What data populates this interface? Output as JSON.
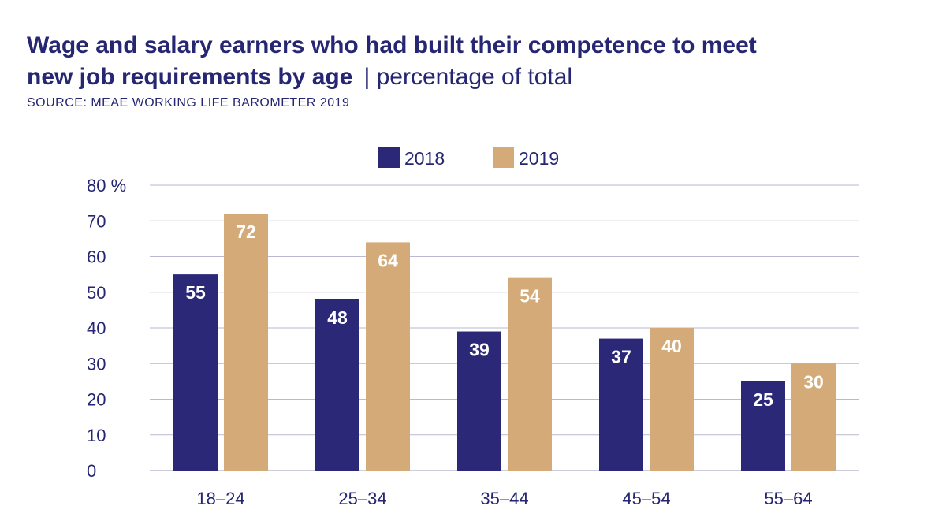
{
  "title": {
    "bold": "Wage and salary earners who had built their competence to meet",
    "bold_line2": "new job requirements by age",
    "separator": "|",
    "subtitle": "percentage of total"
  },
  "source": "SOURCE: MEAE WORKING LIFE BAROMETER 2019",
  "colors": {
    "series_2018": "#2a2877",
    "series_2019": "#d4ab78",
    "grid": "#b9b9d0",
    "text": "#262673"
  },
  "chart_data": {
    "type": "bar",
    "categories": [
      "18–24",
      "25–34",
      "35–44",
      "45–54",
      "55–64"
    ],
    "series": [
      {
        "name": "2018",
        "values": [
          55,
          48,
          39,
          37,
          25
        ]
      },
      {
        "name": "2019",
        "values": [
          72,
          64,
          54,
          40,
          30
        ]
      }
    ],
    "ylim": [
      0,
      80
    ],
    "yticks": [
      "0",
      "10",
      "20",
      "30",
      "40",
      "50",
      "60",
      "70",
      "80 %"
    ],
    "grid": true,
    "legend_position": "top-center",
    "data_labels": true
  }
}
